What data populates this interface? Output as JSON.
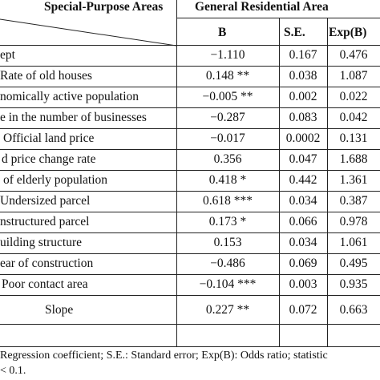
{
  "header": {
    "left": "Special-Purpose Areas",
    "group": "General Residential Area",
    "columns": [
      "B",
      "S.E.",
      "Exp(B)"
    ]
  },
  "rows": [
    {
      "label": "ept",
      "b": "−1.110",
      "se": "0.167",
      "exp": "0.476"
    },
    {
      "label": "Rate of old houses",
      "b": "0.148 **",
      "se": "0.038",
      "exp": "1.087"
    },
    {
      "label": "nomically active population",
      "b": "−0.005 **",
      "se": "0.002",
      "exp": "0.022"
    },
    {
      "label": "e in the number of businesses",
      "b": "−0.287",
      "se": "0.083",
      "exp": "0.042"
    },
    {
      "label": "Official land price",
      "b": "−0.017",
      "se": "0.0002",
      "exp": "0.131"
    },
    {
      "label": "d price change rate",
      "b": "0.356",
      "se": "0.047",
      "exp": "1.688"
    },
    {
      "label": "of elderly population",
      "b": "0.418 *",
      "se": "0.442",
      "exp": "1.361"
    },
    {
      "label": "Undersized parcel",
      "b": "0.618 ***",
      "se": "0.034",
      "exp": "0.387"
    },
    {
      "label": "nstructured parcel",
      "b": "0.173 *",
      "se": "0.066",
      "exp": "0.978"
    },
    {
      "label": "uilding structure",
      "b": "0.153",
      "se": "0.034",
      "exp": "1.061"
    },
    {
      "label": "ear of construction",
      "b": "−0.486",
      "se": "0.069",
      "exp": "0.495"
    },
    {
      "label": "Poor contact area",
      "b": "−0.104 ***",
      "se": "0.003",
      "exp": "0.935"
    },
    {
      "label": "Slope",
      "b": "0.227 **",
      "se": "0.072",
      "exp": "0.663"
    }
  ],
  "footnote": {
    "line1": "Regression coefficient; S.E.: Standard error; Exp(B): Odds ratio; statistic",
    "line2": "< 0.1."
  }
}
